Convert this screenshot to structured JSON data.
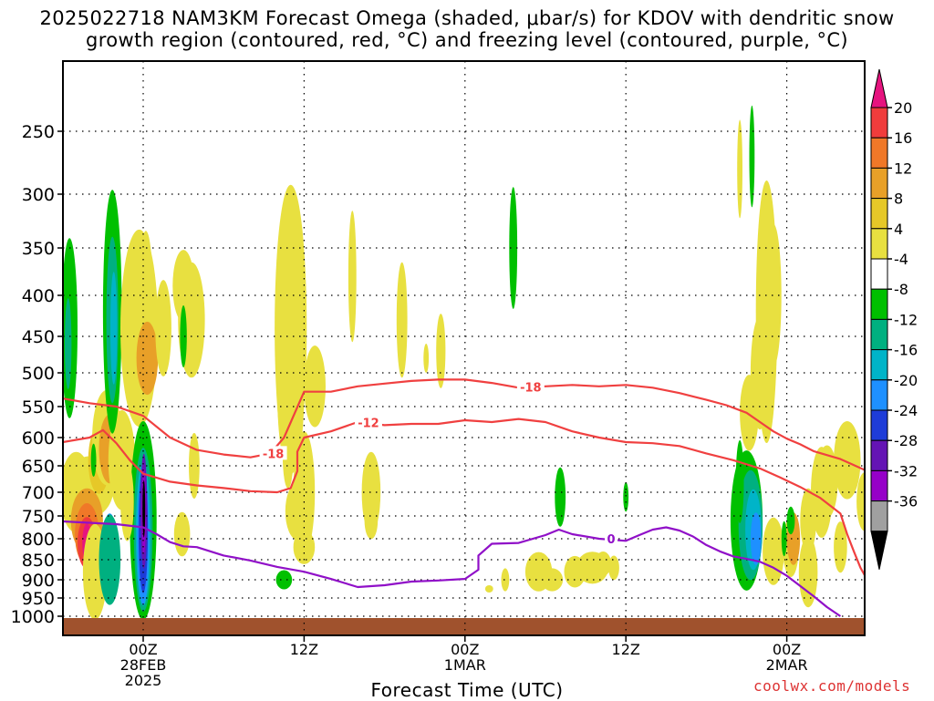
{
  "title_line1": "2025022718 NAM3KM Forecast Omega (shaded, μbar/s) for KDOV with dendritic snow",
  "title_line2": "growth region (contoured, red, °C) and freezing level (contoured, purple, °C)",
  "xlabel": "Forecast Time (UTC)",
  "credit": "coolwx.com/models",
  "chart_data": {
    "type": "contour",
    "title": "2025022718 NAM3KM Forecast Omega (shaded, μbar/s) for KDOV with dendritic snow growth region (contoured, red, °C) and freezing level (contoured, purple, °C)",
    "xlabel": "Forecast Time (UTC)",
    "ylabel": "",
    "x_ticks": [
      {
        "hour": 0,
        "lines": [
          "00Z",
          "28FEB",
          "2025"
        ]
      },
      {
        "hour": 12,
        "lines": [
          "12Z"
        ]
      },
      {
        "hour": 24,
        "lines": [
          "00Z",
          "1MAR"
        ]
      },
      {
        "hour": 36,
        "lines": [
          "12Z"
        ]
      },
      {
        "hour": 48,
        "lines": [
          "00Z",
          "2MAR"
        ]
      }
    ],
    "x_range_hours": [
      -6,
      54
    ],
    "y_ticks": [
      250,
      300,
      350,
      400,
      450,
      500,
      550,
      600,
      650,
      700,
      750,
      800,
      850,
      900,
      950,
      1000
    ],
    "y_range_hpa": [
      1010,
      200
    ],
    "grid": true,
    "colorbar": {
      "levels": [
        20,
        16,
        12,
        8,
        4,
        -4,
        -8,
        -12,
        -16,
        -20,
        -24,
        -28,
        -32,
        -36
      ],
      "colors": [
        "#f03c3c",
        "#f07828",
        "#e8a028",
        "#e6c828",
        "#e8e040",
        "#ffffff",
        "#00c000",
        "#00b080",
        "#00b4c8",
        "#1e90ff",
        "#1e3cd8",
        "#6414b4",
        "#9600c8",
        "#a0a0a0"
      ],
      "top_arrow": "#e6147f",
      "bottom_arrow": "#000000"
    },
    "series": [
      {
        "name": "-18",
        "color": "#f04040",
        "points": [
          [
            -6,
            538
          ],
          [
            -4,
            545
          ],
          [
            -2,
            550
          ],
          [
            0,
            565
          ],
          [
            2,
            600
          ],
          [
            4,
            622
          ],
          [
            6,
            630
          ],
          [
            8,
            635
          ],
          [
            9.5,
            628
          ],
          [
            10.5,
            600
          ],
          [
            12,
            528
          ],
          [
            14,
            528
          ],
          [
            16,
            520
          ],
          [
            18,
            516
          ],
          [
            20,
            512
          ],
          [
            22,
            510
          ],
          [
            24,
            510
          ],
          [
            26,
            515
          ],
          [
            28,
            522
          ],
          [
            30,
            520
          ],
          [
            32,
            518
          ],
          [
            34,
            520
          ],
          [
            36,
            518
          ],
          [
            38,
            522
          ],
          [
            40,
            530
          ],
          [
            42,
            540
          ],
          [
            43.5,
            548
          ],
          [
            45,
            560
          ],
          [
            46,
            575
          ],
          [
            47,
            590
          ],
          [
            48,
            602
          ],
          [
            49,
            612
          ],
          [
            50,
            624
          ],
          [
            52,
            638
          ],
          [
            54,
            660
          ]
        ]
      },
      {
        "name": "-12",
        "color": "#f04040",
        "points": [
          [
            -6,
            608
          ],
          [
            -4,
            600
          ],
          [
            -3,
            588
          ],
          [
            -2,
            610
          ],
          [
            -1,
            640
          ],
          [
            0,
            665
          ],
          [
            2,
            680
          ],
          [
            4,
            687
          ],
          [
            6,
            692
          ],
          [
            8,
            698
          ],
          [
            10,
            700
          ],
          [
            11,
            692
          ],
          [
            11.5,
            660
          ],
          [
            11.5,
            625
          ],
          [
            12,
            600
          ],
          [
            14,
            590
          ],
          [
            16,
            575
          ],
          [
            18,
            580
          ],
          [
            20,
            578
          ],
          [
            22,
            578
          ],
          [
            24,
            572
          ],
          [
            26,
            575
          ],
          [
            28,
            570
          ],
          [
            30,
            575
          ],
          [
            32,
            590
          ],
          [
            34,
            600
          ],
          [
            36,
            608
          ],
          [
            38,
            610
          ],
          [
            40,
            615
          ],
          [
            42,
            628
          ],
          [
            44,
            640
          ],
          [
            46,
            655
          ],
          [
            47.5,
            672
          ],
          [
            49,
            690
          ],
          [
            50.5,
            712
          ],
          [
            52,
            745
          ],
          [
            52.5,
            790
          ],
          [
            53,
            830
          ],
          [
            53.5,
            870
          ],
          [
            54,
            900
          ]
        ]
      },
      {
        "name": "0",
        "color": "#9010c8",
        "points": [
          [
            -6,
            762
          ],
          [
            -4,
            765
          ],
          [
            -2,
            768
          ],
          [
            0,
            775
          ],
          [
            1,
            790
          ],
          [
            2,
            808
          ],
          [
            3,
            818
          ],
          [
            4,
            820
          ],
          [
            6,
            840
          ],
          [
            8,
            852
          ],
          [
            10,
            868
          ],
          [
            12,
            880
          ],
          [
            14,
            898
          ],
          [
            16,
            920
          ],
          [
            18,
            915
          ],
          [
            20,
            905
          ],
          [
            22,
            902
          ],
          [
            24,
            898
          ],
          [
            25,
            875
          ],
          [
            25,
            840
          ],
          [
            26,
            812
          ],
          [
            28,
            810
          ],
          [
            30,
            792
          ],
          [
            31,
            780
          ],
          [
            32,
            790
          ],
          [
            34,
            800
          ],
          [
            36,
            805
          ],
          [
            37,
            792
          ],
          [
            38,
            780
          ],
          [
            39,
            775
          ],
          [
            40,
            782
          ],
          [
            41,
            795
          ],
          [
            42,
            815
          ],
          [
            43,
            830
          ],
          [
            44,
            842
          ],
          [
            45,
            848
          ],
          [
            46,
            855
          ],
          [
            47,
            870
          ],
          [
            48,
            890
          ],
          [
            50,
            945
          ],
          [
            51,
            975
          ],
          [
            52,
            1000
          ]
        ]
      }
    ],
    "contour_labels": [
      "-18",
      "-12",
      "-18",
      "0"
    ]
  }
}
